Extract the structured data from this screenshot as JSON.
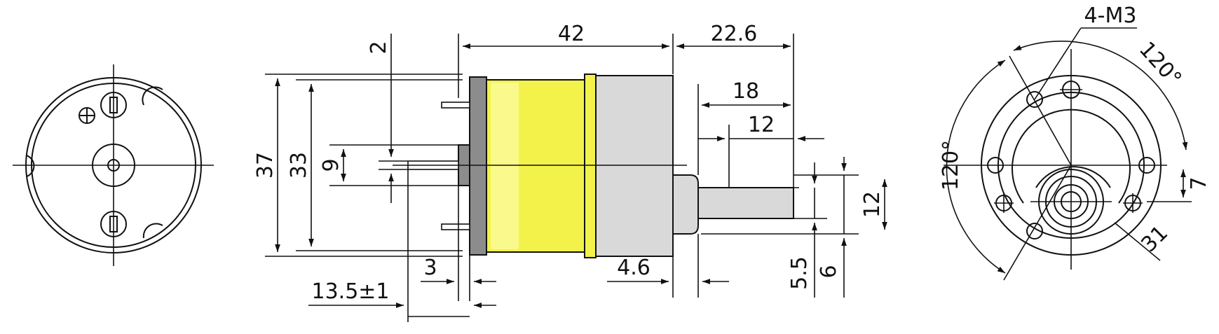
{
  "diagram": {
    "colors": {
      "motor_body": "#f2f24a",
      "motor_body_light": "#fafa8c",
      "gearbox": "#d9d9d9",
      "end_cap": "#8c8c8c",
      "line": "#111111"
    },
    "side_view": {
      "dim_length_42": "42",
      "dim_22_6": "22.6",
      "dim_18": "18",
      "dim_12_top": "12",
      "dim_37": "37",
      "dim_33": "33",
      "dim_9": "9",
      "dim_2": "2",
      "dim_12_shaft": "12",
      "dim_3": "3",
      "dim_13_5": "13.5±1",
      "dim_4_6": "4.6",
      "dim_5_5": "5.5",
      "dim_6": "6"
    },
    "front_view": {
      "label_4_m3": "4-M3",
      "angle_120_top": "120°",
      "angle_120_left": "120°",
      "dim_7": "7",
      "dim_31": "31"
    },
    "rear_view": {
      "terminal_plus": "+",
      "terminal_minus": "−"
    }
  }
}
